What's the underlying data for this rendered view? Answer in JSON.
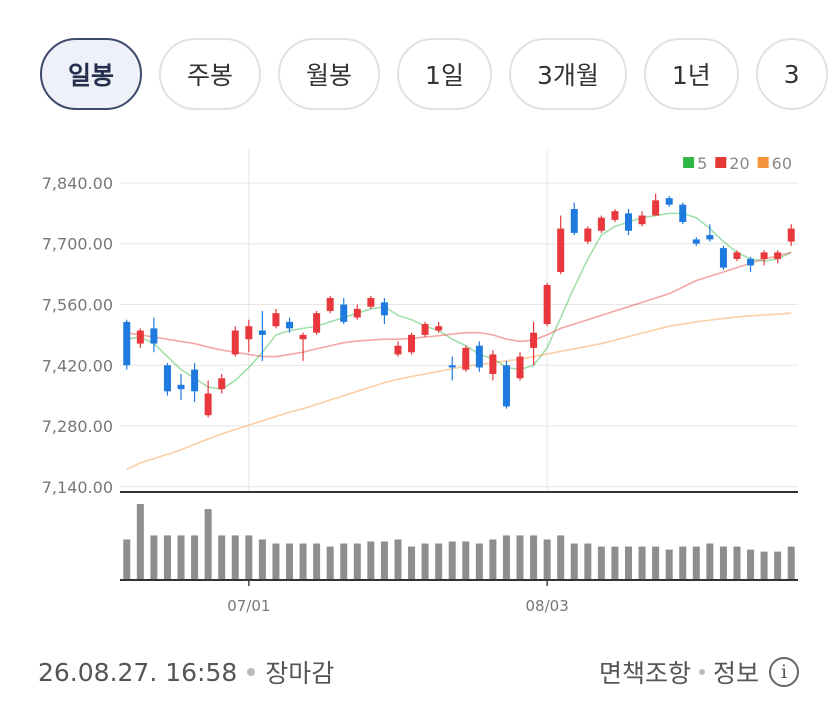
{
  "tabs": [
    "일봉",
    "주봉",
    "월봉",
    "1일",
    "3개월",
    "1년",
    "3"
  ],
  "chart_data": {
    "type": "candlestick",
    "categories": [
      null,
      null,
      null,
      null,
      null,
      null,
      null,
      null,
      null,
      "07/01",
      null,
      null,
      null,
      null,
      null,
      null,
      null,
      null,
      null,
      null,
      null,
      null,
      null,
      null,
      null,
      null,
      null,
      null,
      null,
      null,
      null,
      "08/03",
      null,
      null,
      null,
      null,
      null,
      null,
      null,
      null,
      null,
      null,
      null,
      null,
      null,
      null,
      null,
      null,
      null,
      null
    ],
    "open": [
      7520,
      7470,
      7505,
      7420,
      7375,
      7410,
      7305,
      7365,
      7445,
      7480,
      7500,
      7510,
      7520,
      7480,
      7495,
      7545,
      7560,
      7530,
      7555,
      7565,
      7445,
      7450,
      7490,
      7500,
      7420,
      7410,
      7465,
      7400,
      7420,
      7390,
      7460,
      7515,
      7635,
      7780,
      7705,
      7730,
      7755,
      7770,
      7745,
      7765,
      7805,
      7790,
      7710,
      7720,
      7690,
      7665,
      7665,
      7665,
      7665,
      7705
    ],
    "high": [
      7525,
      7505,
      7530,
      7425,
      7400,
      7425,
      7385,
      7400,
      7510,
      7525,
      7545,
      7550,
      7530,
      7495,
      7545,
      7580,
      7575,
      7560,
      7580,
      7575,
      7475,
      7495,
      7520,
      7520,
      7440,
      7465,
      7475,
      7455,
      7430,
      7450,
      7520,
      7610,
      7765,
      7795,
      7740,
      7765,
      7780,
      7780,
      7775,
      7815,
      7810,
      7795,
      7715,
      7745,
      7695,
      7685,
      7670,
      7685,
      7685,
      7745
    ],
    "low": [
      7410,
      7460,
      7450,
      7350,
      7340,
      7335,
      7300,
      7355,
      7440,
      7450,
      7430,
      7505,
      7495,
      7430,
      7490,
      7540,
      7515,
      7525,
      7550,
      7515,
      7440,
      7445,
      7485,
      7495,
      7385,
      7405,
      7405,
      7385,
      7320,
      7385,
      7420,
      7510,
      7630,
      7720,
      7700,
      7725,
      7750,
      7720,
      7740,
      7765,
      7785,
      7745,
      7695,
      7705,
      7640,
      7660,
      7635,
      7650,
      7655,
      7695
    ],
    "close": [
      7420,
      7500,
      7470,
      7360,
      7365,
      7360,
      7355,
      7390,
      7500,
      7510,
      7490,
      7540,
      7505,
      7490,
      7540,
      7575,
      7520,
      7550,
      7575,
      7535,
      7465,
      7490,
      7515,
      7510,
      7415,
      7460,
      7415,
      7445,
      7325,
      7440,
      7495,
      7605,
      7735,
      7725,
      7735,
      7760,
      7775,
      7730,
      7765,
      7800,
      7790,
      7750,
      7700,
      7710,
      7645,
      7680,
      7650,
      7680,
      7680,
      7735
    ],
    "up_color": "#e8383d",
    "down_color": "#1f7ae0",
    "series": [
      {
        "name": "5",
        "color": "#2fb844",
        "values": [
          7480,
          7485,
          7470,
          7440,
          7410,
          7390,
          7370,
          7365,
          7385,
          7415,
          7450,
          7490,
          7500,
          7505,
          7510,
          7520,
          7530,
          7540,
          7550,
          7555,
          7535,
          7525,
          7510,
          7500,
          7480,
          7465,
          7445,
          7435,
          7415,
          7410,
          7420,
          7460,
          7530,
          7600,
          7665,
          7720,
          7740,
          7750,
          7760,
          7765,
          7770,
          7770,
          7760,
          7735,
          7705,
          7680,
          7665,
          7660,
          7665,
          7680
        ]
      },
      {
        "name": "20",
        "color": "#e53935",
        "values": [
          7495,
          7490,
          7485,
          7480,
          7475,
          7470,
          7462,
          7455,
          7450,
          7445,
          7440,
          7440,
          7445,
          7450,
          7458,
          7465,
          7472,
          7476,
          7478,
          7480,
          7480,
          7482,
          7485,
          7488,
          7492,
          7495,
          7495,
          7490,
          7480,
          7475,
          7478,
          7490,
          7505,
          7515,
          7525,
          7535,
          7545,
          7555,
          7565,
          7575,
          7585,
          7600,
          7615,
          7625,
          7635,
          7645,
          7655,
          7665,
          7672,
          7680
        ]
      },
      {
        "name": "60",
        "color": "#f5943a",
        "values": [
          7180,
          7195,
          7205,
          7215,
          7225,
          7238,
          7250,
          7262,
          7272,
          7282,
          7292,
          7302,
          7312,
          7320,
          7330,
          7340,
          7350,
          7360,
          7370,
          7380,
          7388,
          7394,
          7400,
          7406,
          7412,
          7418,
          7422,
          7426,
          7430,
          7434,
          7440,
          7446,
          7452,
          7458,
          7464,
          7470,
          7478,
          7486,
          7494,
          7502,
          7510,
          7515,
          7520,
          7524,
          7528,
          7531,
          7534,
          7536,
          7538,
          7540
        ]
      }
    ],
    "volume": {
      "color": "#8e8e8e",
      "values": [
        40,
        75,
        44,
        44,
        44,
        44,
        70,
        44,
        44,
        44,
        40,
        36,
        36,
        36,
        36,
        33,
        36,
        36,
        38,
        38,
        40,
        33,
        36,
        36,
        38,
        38,
        36,
        40,
        44,
        44,
        44,
        40,
        44,
        36,
        36,
        33,
        33,
        33,
        33,
        33,
        30,
        33,
        33,
        36,
        33,
        33,
        30,
        28,
        28,
        33
      ]
    },
    "ylim": [
      7128,
      7916
    ],
    "yticks": [
      {
        "value": 7840,
        "label": "7,840.00"
      },
      {
        "value": 7700,
        "label": "7,700.00"
      },
      {
        "value": 7560,
        "label": "7,560.00"
      },
      {
        "value": 7420,
        "label": "7,420.00"
      },
      {
        "value": 7280,
        "label": "7,280.00"
      },
      {
        "value": 7140,
        "label": "7,140.00"
      }
    ],
    "grid": true,
    "legend": "top-right"
  },
  "footer": {
    "timestamp": "26.08.27. 16:58",
    "status": "장마감",
    "disclaimer": "면책조항",
    "info": "정보"
  }
}
